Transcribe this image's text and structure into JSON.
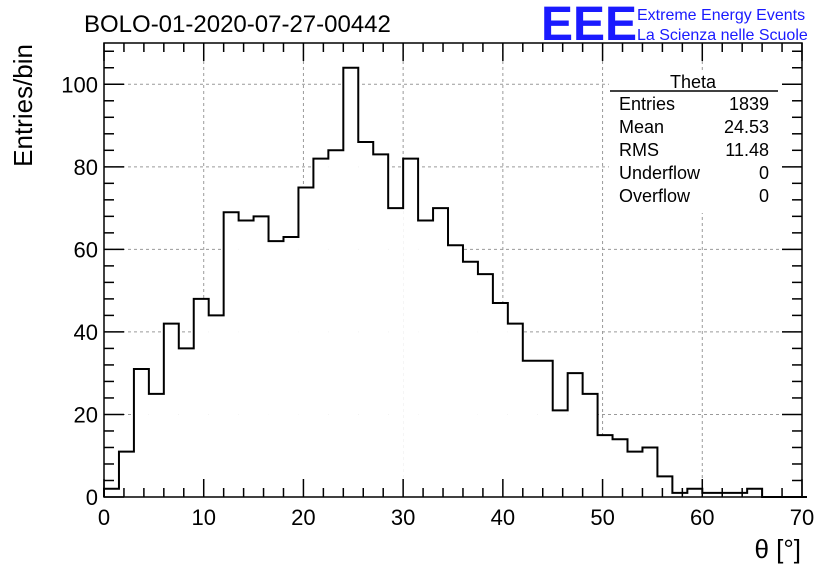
{
  "chart_data": {
    "type": "bar",
    "histogram": true,
    "title": "BOLO-01-2020-07-27-00442",
    "xlabel": "θ [°]",
    "ylabel": "Entries/bin",
    "xlim": [
      0,
      70
    ],
    "ylim": [
      0,
      110
    ],
    "xticks": [
      0,
      10,
      20,
      30,
      40,
      50,
      60,
      70
    ],
    "yticks": [
      0,
      20,
      40,
      60,
      80,
      100
    ],
    "grid": true,
    "bin_width": 1.5,
    "values": [
      2,
      11,
      31,
      25,
      42,
      36,
      48,
      44,
      69,
      67,
      68,
      62,
      63,
      75,
      82,
      84,
      104,
      86,
      83,
      70,
      82,
      67,
      70,
      61,
      57,
      54,
      47,
      42,
      33,
      33,
      21,
      30,
      25,
      15,
      14,
      11,
      12,
      5,
      1,
      2,
      1,
      1,
      1,
      2,
      0,
      0,
      0
    ]
  },
  "stats": {
    "title": "Theta",
    "rows": [
      {
        "label": "Entries",
        "value": "1839"
      },
      {
        "label": "Mean",
        "value": "24.53"
      },
      {
        "label": "RMS",
        "value": "11.48"
      },
      {
        "label": "Underflow",
        "value": "0"
      },
      {
        "label": "Overflow",
        "value": "0"
      }
    ]
  },
  "logo": {
    "mark": "EEE",
    "line1": "Extreme Energy Events",
    "line2": "La Scienza nelle Scuole",
    "color": "#1a1aff"
  }
}
